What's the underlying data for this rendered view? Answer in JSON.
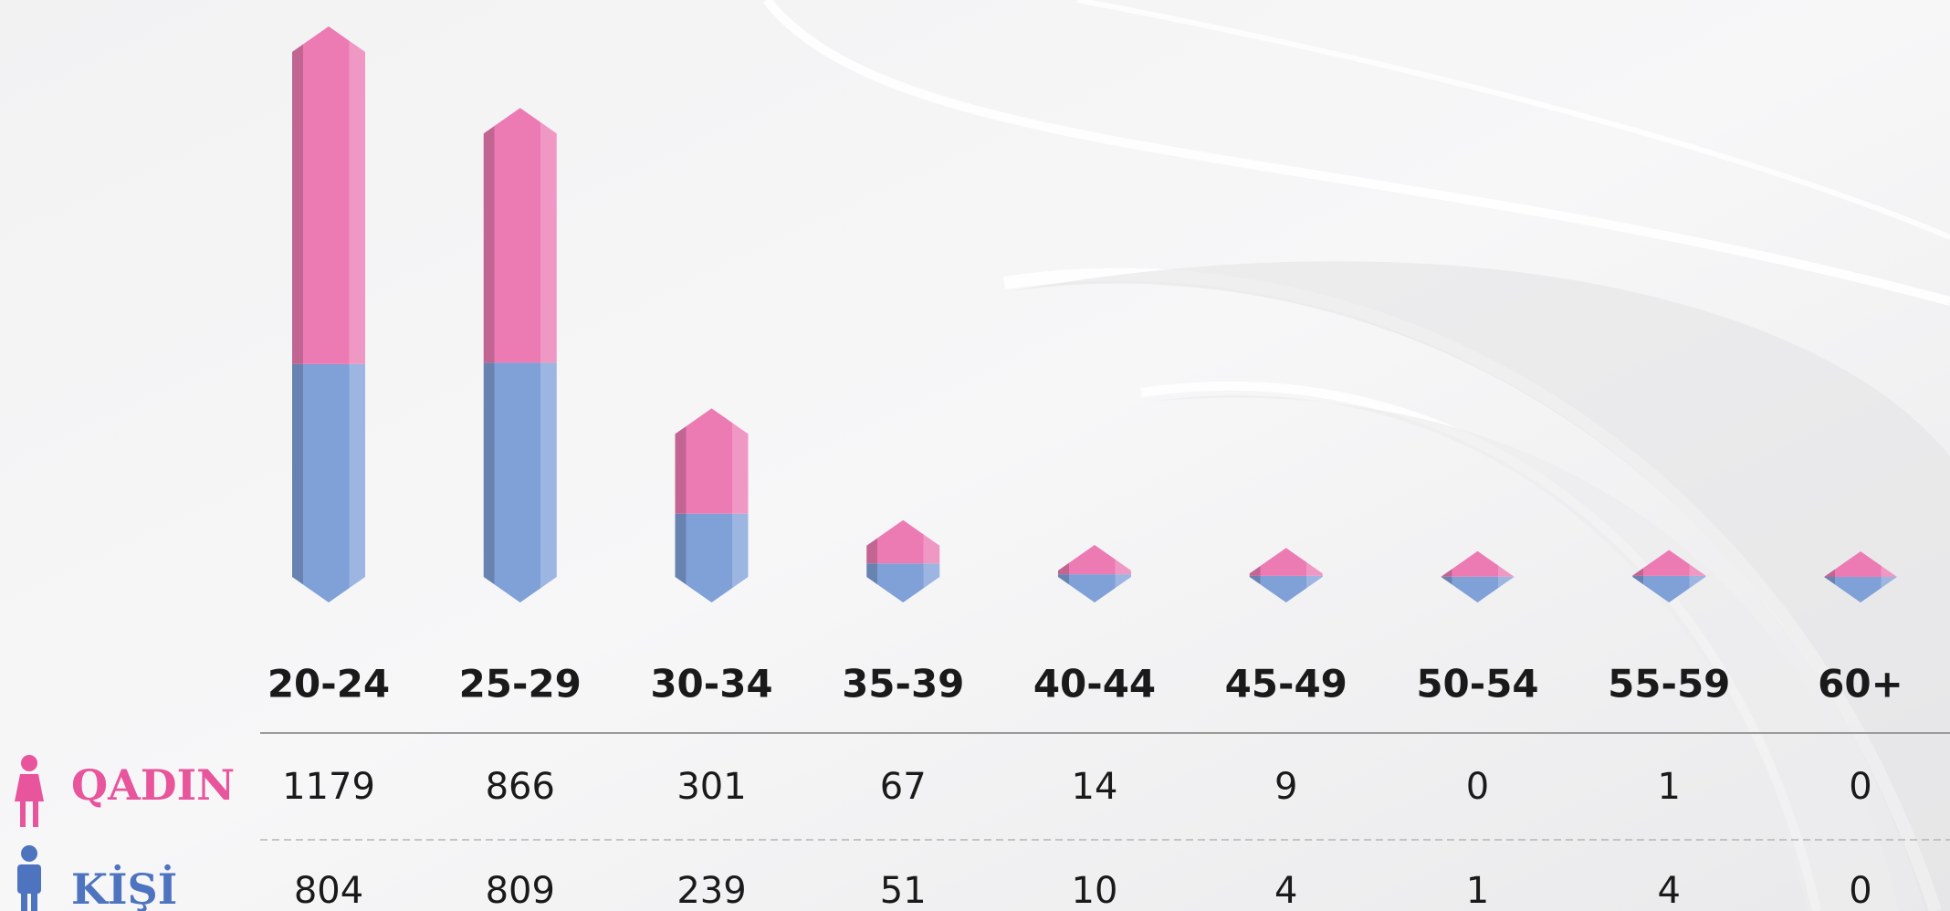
{
  "chart_data": {
    "type": "bar",
    "categories": [
      "20-24",
      "25-29",
      "30-34",
      "35-39",
      "40-44",
      "45-49",
      "50-54",
      "55-59",
      "60+"
    ],
    "series": [
      {
        "name": "KİŞİ",
        "color": "#80a0d8",
        "values": [
          804,
          809,
          239,
          51,
          10,
          4,
          1,
          4,
          0
        ]
      },
      {
        "name": "QADIN",
        "color": "#ec7bb3",
        "values": [
          1179,
          866,
          301,
          67,
          14,
          9,
          0,
          1,
          0
        ]
      }
    ]
  }
}
